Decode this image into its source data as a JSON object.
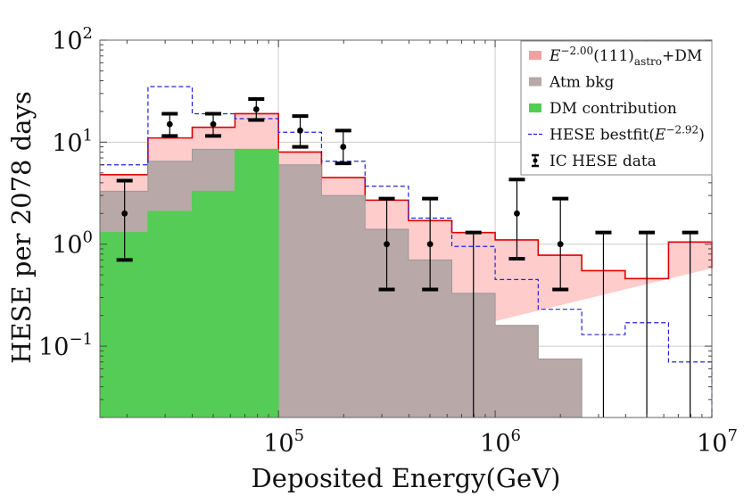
{
  "chart_data": {
    "type": "histogram",
    "title": "",
    "xlabel": "Deposited Energy(GeV)",
    "ylabel": "HESE per 2078 days",
    "x_scale": "log",
    "y_scale": "log",
    "xlim": [
      15000,
      10000000
    ],
    "ylim": [
      0.02,
      100
    ],
    "x_ticks": [
      {
        "value": 100000,
        "mantissa": "10",
        "exponent": "5"
      },
      {
        "value": 1000000,
        "mantissa": "10",
        "exponent": "6"
      },
      {
        "value": 10000000,
        "mantissa": "10",
        "exponent": "7"
      }
    ],
    "y_ticks": [
      {
        "value": 100,
        "mantissa": "10",
        "exponent": "2"
      },
      {
        "value": 10,
        "mantissa": "10",
        "exponent": "1"
      },
      {
        "value": 1,
        "mantissa": "10",
        "exponent": "0"
      },
      {
        "value": 0.1,
        "mantissa": "10",
        "exponent": "−1"
      }
    ],
    "grid": true,
    "legend_position": "top-right",
    "bin_edges": [
      15000,
      25000,
      40000,
      63000,
      100000,
      158000,
      251000,
      398000,
      631000,
      1000000,
      1580000,
      2510000,
      3980000,
      6310000,
      10000000
    ],
    "series": [
      {
        "key": "total",
        "legend": {
          "base": "E",
          "sup": "−2.00",
          "mid": "(111)",
          "sub": "astro",
          "tail": "+DM"
        },
        "style": "filled-step",
        "fill": "#ffcccc",
        "stroke": "#e00000",
        "values": [
          4.8,
          11.0,
          14.0,
          19.0,
          8.0,
          4.5,
          2.7,
          1.7,
          1.3,
          1.1,
          0.78,
          0.55,
          0.46,
          1.05,
          0.58
        ]
      },
      {
        "key": "atm",
        "legend": {
          "base": "Atm bkg"
        },
        "style": "filled-step",
        "fill": "#b8a8a8",
        "stroke": "#999999",
        "values": [
          3.3,
          6.5,
          8.5,
          8.5,
          6.0,
          3.0,
          1.4,
          0.7,
          0.33,
          0.16,
          0.075
        ]
      },
      {
        "key": "dm",
        "legend": {
          "base": "DM contribution"
        },
        "style": "filled-step",
        "fill": "#55cc55",
        "stroke": "#55cc55",
        "values": [
          1.3,
          2.1,
          3.3,
          8.5
        ]
      },
      {
        "key": "bestfit",
        "legend": {
          "base": "HESE bestfit(",
          "sup2": "E",
          "sup": "−2.92",
          "tail": ")"
        },
        "style": "dashed-step",
        "stroke": "#2222dd",
        "values": [
          6.0,
          35.0,
          19.0,
          17.0,
          12.5,
          6.5,
          3.7,
          1.8,
          0.95,
          0.45,
          0.23,
          0.13,
          0.17,
          0.07
        ]
      }
    ],
    "data_points": {
      "legend": "IC HESE data",
      "points": [
        {
          "x": 19500,
          "y": 2.0,
          "ylow": 0.7,
          "yhigh": 4.2
        },
        {
          "x": 31500,
          "y": 15.0,
          "ylow": 11.5,
          "yhigh": 19.0
        },
        {
          "x": 50000,
          "y": 15.0,
          "ylow": 11.5,
          "yhigh": 19.0
        },
        {
          "x": 79000,
          "y": 21.0,
          "ylow": 16.5,
          "yhigh": 26.5
        },
        {
          "x": 126000,
          "y": 13.0,
          "ylow": 9.0,
          "yhigh": 18.0
        },
        {
          "x": 199000,
          "y": 9.0,
          "ylow": 6.2,
          "yhigh": 13.0
        },
        {
          "x": 316000,
          "y": 1.0,
          "ylow": 0.36,
          "yhigh": 2.8
        },
        {
          "x": 501000,
          "y": 1.0,
          "ylow": 0.36,
          "yhigh": 2.8
        },
        {
          "x": 794000,
          "y": null,
          "ylow": 0.02,
          "yhigh": 1.3
        },
        {
          "x": 1260000,
          "y": 2.0,
          "ylow": 0.72,
          "yhigh": 4.3
        },
        {
          "x": 2000000,
          "y": 1.0,
          "ylow": 0.36,
          "yhigh": 2.8
        },
        {
          "x": 3160000,
          "y": null,
          "ylow": 0.02,
          "yhigh": 1.3
        },
        {
          "x": 5010000,
          "y": null,
          "ylow": 0.02,
          "yhigh": 1.3
        },
        {
          "x": 7940000,
          "y": null,
          "ylow": 0.02,
          "yhigh": 1.3
        }
      ]
    },
    "colors": {
      "grid": "#cccccc",
      "frame": "#666666",
      "points": "#000000"
    }
  }
}
